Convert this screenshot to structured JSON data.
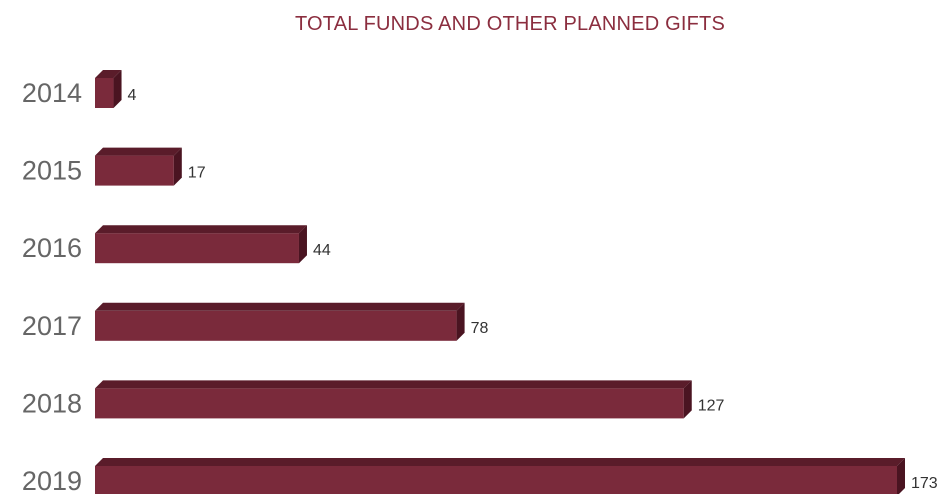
{
  "chart_data": {
    "type": "bar",
    "orientation": "horizontal",
    "style": "3d",
    "title": "TOTAL FUNDS AND OTHER PLANNED GIFTS",
    "categories": [
      "2014",
      "2015",
      "2016",
      "2017",
      "2018",
      "2019"
    ],
    "values": [
      4,
      17,
      44,
      78,
      127,
      173
    ],
    "data_labels": [
      "4",
      "17",
      "44",
      "78",
      "127",
      "173"
    ],
    "xlabel": "",
    "ylabel": "",
    "xlim": [
      0,
      173
    ],
    "grid": false,
    "legend": "none",
    "colors": {
      "bar_front": "#7a2a3b",
      "bar_top": "#5a1c2a",
      "bar_side": "#4a1421",
      "title": "#8b2e3f",
      "category_text": "#666666",
      "value_text": "#333333"
    }
  }
}
